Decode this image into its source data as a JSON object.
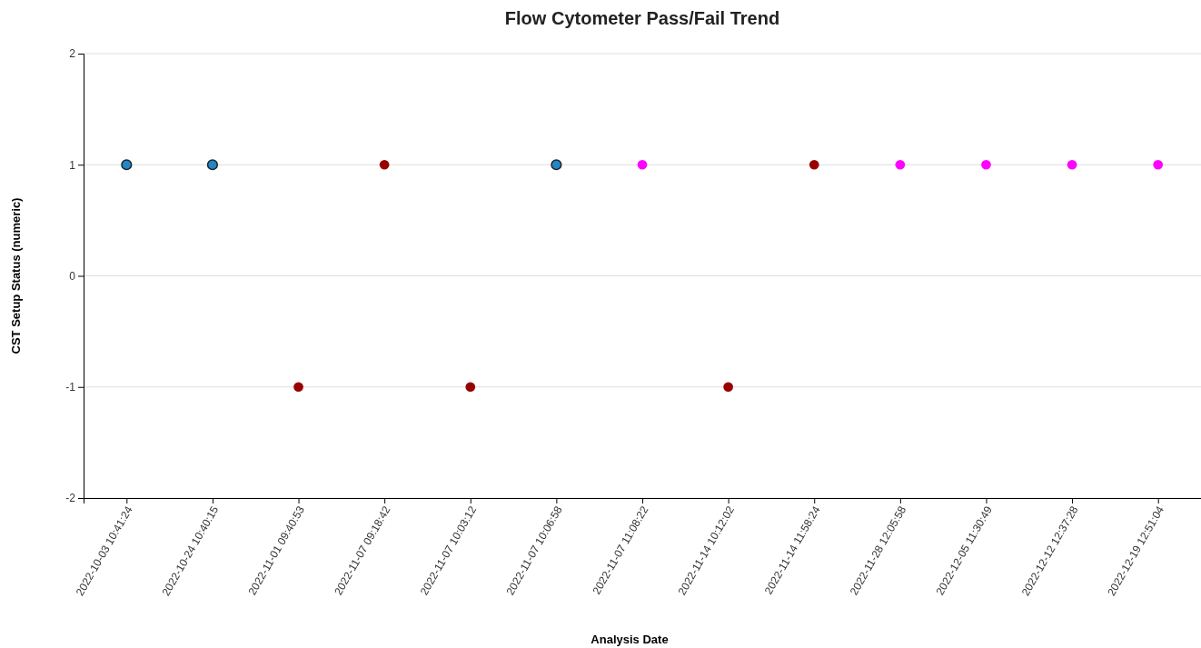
{
  "chart_data": {
    "type": "scatter",
    "title": "Flow Cytometer Pass/Fail Trend",
    "xlabel": "Analysis Date",
    "ylabel": "CST Setup Status (numeric)",
    "categories": [
      "2022-10-03 10:41:24",
      "2022-10-24 10:40:15",
      "2022-11-01 09:40:53",
      "2022-11-07 09:18:42",
      "2022-11-07 10:03:12",
      "2022-11-07 10:06:58",
      "2022-11-07 11:08:22",
      "2022-11-14 10:12:02",
      "2022-11-14 11:58:24",
      "2022-11-28 12:05:58",
      "2022-12-05 11:30:49",
      "2022-12-12 12:37:28",
      "2022-12-19 12:51:04"
    ],
    "series": [
      {
        "color": "#1f88c8",
        "values": [
          1,
          1,
          null,
          null,
          null,
          1,
          null,
          null,
          null,
          null,
          null,
          null,
          null
        ]
      },
      {
        "color": "#ff00ff",
        "values": [
          null,
          null,
          null,
          null,
          null,
          null,
          1,
          null,
          null,
          1,
          1,
          1,
          1
        ]
      },
      {
        "color": "#990000",
        "values": [
          null,
          null,
          -1,
          1,
          -1,
          null,
          null,
          -1,
          1,
          null,
          null,
          null,
          null
        ]
      }
    ],
    "ylim": [
      -2,
      2
    ],
    "yticks": [
      -2,
      -1,
      0,
      1,
      2
    ],
    "grid": "y",
    "marker": "circle"
  }
}
